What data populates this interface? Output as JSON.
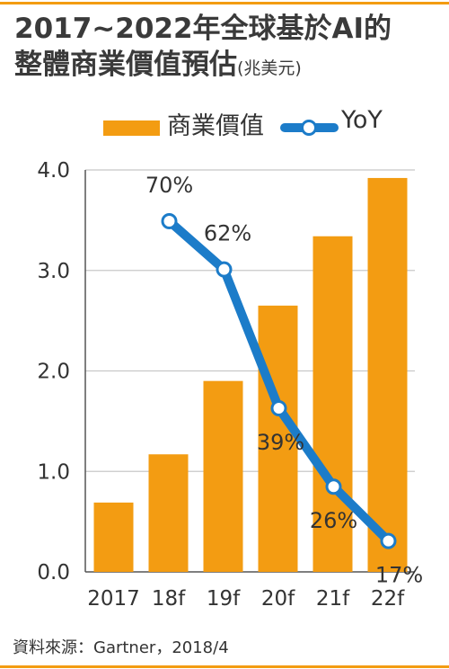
{
  "title": {
    "line1": "2017~2022年全球基於AI的",
    "line2": "整體商業價值預估",
    "unit": "(兆美元)"
  },
  "legend": {
    "bar_label": "商業價值",
    "line_label": "YoY"
  },
  "source": "資料來源：Gartner，2018/4",
  "colors": {
    "bar": "#F39C12",
    "line": "#1C7CC9",
    "marker_fill": "#ffffff",
    "accent_rule": "#F39C12",
    "grid": "#c8c8c8"
  },
  "chart_data": {
    "type": "bar",
    "categories": [
      "2017",
      "18f",
      "19f",
      "20f",
      "21f",
      "22f"
    ],
    "series": [
      {
        "name": "商業價值",
        "type": "bar",
        "values": [
          0.69,
          1.17,
          1.9,
          2.65,
          3.34,
          3.92
        ]
      },
      {
        "name": "YoY",
        "type": "line",
        "axis": "secondary",
        "values": [
          null,
          70,
          62,
          39,
          26,
          17
        ],
        "labels": [
          "",
          "70%",
          "62%",
          "39%",
          "26%",
          "17%"
        ]
      }
    ],
    "ylim": [
      0,
      4
    ],
    "yticks": [
      "0.0",
      "1.0",
      "2.0",
      "3.0",
      "4.0"
    ],
    "grid": true,
    "legend": "top"
  }
}
